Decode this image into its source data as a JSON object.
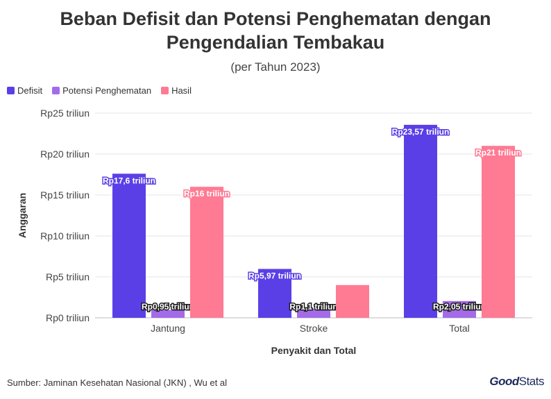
{
  "title": "Beban Defisit dan Potensi Penghematan dengan Pengendalian Tembakau",
  "subtitle": "(per Tahun 2023)",
  "source": "Sumber: Jaminan Kesehatan Nasional (JKN) , Wu et al",
  "brand": {
    "part1": "Good",
    "part2": "Stats"
  },
  "legend": [
    {
      "label": "Defisit",
      "color": "#5b3fe6"
    },
    {
      "label": "Potensi Penghematan",
      "color": "#a46be9"
    },
    {
      "label": "Hasil",
      "color": "#ff7a93"
    }
  ],
  "chart_data": {
    "type": "bar",
    "title": "Beban Defisit dan Potensi Penghematan dengan Pengendalian Tembakau",
    "subtitle": "(per Tahun 2023)",
    "xlabel": "Penyakit dan Total",
    "ylabel": "Anggaran",
    "categories": [
      "Jantung",
      "Stroke",
      "Total"
    ],
    "ylim": [
      0,
      25
    ],
    "yticks": [
      0,
      5,
      10,
      15,
      20,
      25
    ],
    "ytick_labels": [
      "Rp0 triliun",
      "Rp5 triliun",
      "Rp10 triliun",
      "Rp15 triliun",
      "Rp20 triliun",
      "Rp25 triliun"
    ],
    "grid": true,
    "legend_position": "top-left",
    "series": [
      {
        "name": "Defisit",
        "color": "#5b3fe6",
        "values": [
          17.6,
          5.97,
          23.57
        ],
        "labels": [
          "Rp17,6 triliun",
          "Rp5,97 triliun",
          "Rp23,57 triliun"
        ]
      },
      {
        "name": "Potensi Penghematan",
        "color": "#a46be9",
        "values": [
          0.95,
          1.1,
          2.05
        ],
        "labels": [
          "Rp0,95 triliun",
          "Rp1,1 triliun",
          "Rp2,05 triliun"
        ]
      },
      {
        "name": "Hasil",
        "color": "#ff7a93",
        "values": [
          16,
          4,
          21
        ],
        "labels": [
          "Rp16 triliun",
          "",
          "Rp21 triliun"
        ]
      }
    ]
  }
}
